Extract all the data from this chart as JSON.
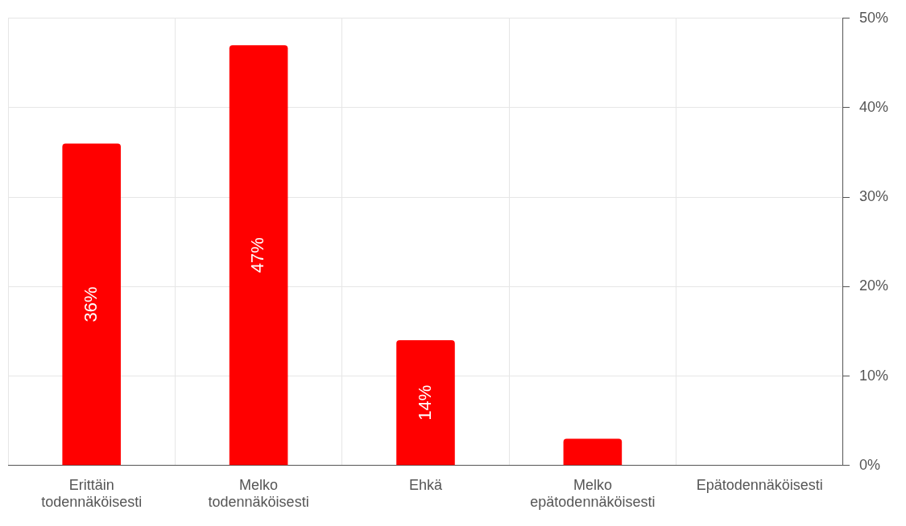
{
  "chart_data": {
    "type": "bar",
    "categories": [
      "Erittäin todennäköisesti",
      "Melko todennäköisesti",
      "Ehkä",
      "Melko epätodennäköisesti",
      "Epätodennäköisesti"
    ],
    "values": [
      36,
      47,
      14,
      3,
      0
    ],
    "value_labels": [
      "36%",
      "47%",
      "14%",
      null,
      null
    ],
    "color": "#ff0000",
    "ylim": [
      0,
      50
    ],
    "yticks": [
      {
        "value": 0,
        "label": "0%"
      },
      {
        "value": 10,
        "label": "10%"
      },
      {
        "value": 20,
        "label": "20%"
      },
      {
        "value": 30,
        "label": "30%"
      },
      {
        "value": 40,
        "label": "40%"
      },
      {
        "value": 50,
        "label": "50%"
      }
    ],
    "grid": true,
    "legend": false
  }
}
